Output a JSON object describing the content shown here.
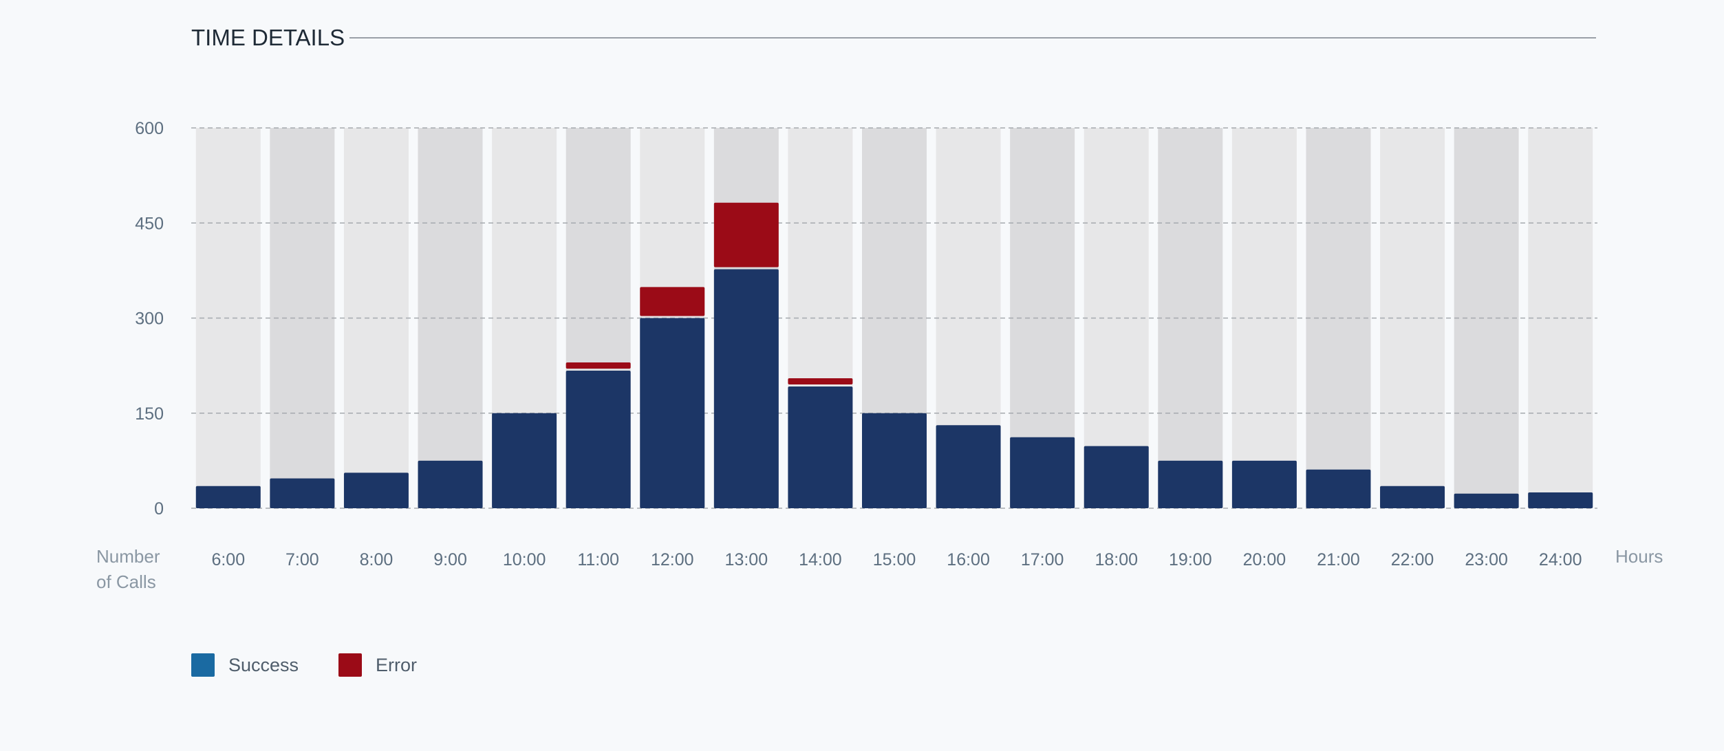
{
  "header": {
    "title": "TIME DETAILS"
  },
  "chart_data": {
    "type": "bar",
    "stacked": true,
    "categories": [
      "6:00",
      "7:00",
      "8:00",
      "9:00",
      "10:00",
      "11:00",
      "12:00",
      "13:00",
      "14:00",
      "15:00",
      "16:00",
      "17:00",
      "18:00",
      "19:00",
      "20:00",
      "21:00",
      "22:00",
      "23:00",
      "24:00"
    ],
    "series": [
      {
        "name": "Success",
        "color": "#1c3666",
        "values": [
          35,
          47,
          56,
          75,
          150,
          217,
          300,
          377,
          192,
          150,
          131,
          112,
          98,
          75,
          75,
          61,
          35,
          23,
          25
        ]
      },
      {
        "name": "Error",
        "color": "#9b0b17",
        "values": [
          0,
          0,
          0,
          0,
          0,
          13,
          49,
          105,
          13,
          0,
          0,
          0,
          0,
          0,
          0,
          0,
          0,
          0,
          0
        ]
      }
    ],
    "ylim": [
      0,
      600
    ],
    "yticks": [
      0,
      150,
      300,
      450,
      600
    ],
    "ylabel": "Number of Calls",
    "xlabel": "Hours",
    "grid": true,
    "legend": {
      "position": "bottom-left",
      "items": [
        {
          "label": "Success",
          "color": "#1a6aa2"
        },
        {
          "label": "Error",
          "color": "#9b0b17"
        }
      ]
    },
    "colors": {
      "column_light": "#e7e7e8",
      "column_dark": "#dbdbdd",
      "grid": "#a5a9ae",
      "tick_text": "#5d6f80",
      "axis_title_text": "#8a97a3"
    }
  }
}
